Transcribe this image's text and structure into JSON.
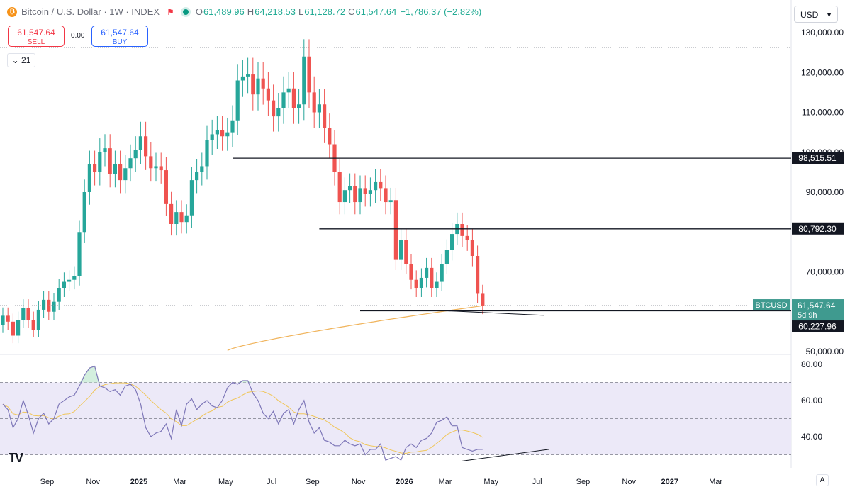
{
  "header": {
    "symbol": "Bitcoin / U.S. Dollar · 1W · INDEX",
    "coin_icon": "bitcoin-icon",
    "ohlc": [
      {
        "k": "O",
        "v": "61,489.96"
      },
      {
        "k": "H",
        "v": "64,218.53"
      },
      {
        "k": "L",
        "v": "61,128.72"
      },
      {
        "k": "C",
        "v": "61,547.64"
      },
      {
        "k": "",
        "v": "−1,786.37 (−2.82%)"
      }
    ]
  },
  "trade": {
    "sell_price": "61,547.64",
    "sell_label": "SELL",
    "buy_price": "61,547.64",
    "buy_label": "BUY",
    "spread": "0.00"
  },
  "indicators_toggle": "21",
  "currency": "USD",
  "auto_label": "A",
  "logo": "TV",
  "colors": {
    "up": "#26a69a",
    "down": "#ef5350",
    "ma": "#f0b35a",
    "rsi": "#7e77b8",
    "rsi_ma": "#f0c65a",
    "rsi_band": "#ece9f8"
  },
  "chart_data": {
    "type": "candlestick",
    "price_axis": {
      "min": 50000,
      "max": 130000,
      "ticks": [
        {
          "v": 130000,
          "label": "130,000.00"
        },
        {
          "v": 120000,
          "label": "120,000.00"
        },
        {
          "v": 110000,
          "label": "110,000.00"
        },
        {
          "v": 100000,
          "label": "100,000.00"
        },
        {
          "v": 90000,
          "label": "90,000.00"
        },
        {
          "v": 70000,
          "label": "70,000.00"
        },
        {
          "v": 50000,
          "label": "50,000.00"
        }
      ]
    },
    "x_axis": {
      "labels": [
        {
          "label": "Sep",
          "bar": 2,
          "bold": false
        },
        {
          "label": "Nov",
          "bar": 11,
          "bold": false
        },
        {
          "label": "2025",
          "bar": 20,
          "bold": true
        },
        {
          "label": "Mar",
          "bar": 28,
          "bold": false
        },
        {
          "label": "May",
          "bar": 37,
          "bold": false
        },
        {
          "label": "Jul",
          "bar": 46,
          "bold": false
        },
        {
          "label": "Sep",
          "bar": 54,
          "bold": false
        },
        {
          "label": "Nov",
          "bar": 63,
          "bold": false
        },
        {
          "label": "2026",
          "bar": 72,
          "bold": true
        },
        {
          "label": "Mar",
          "bar": 80,
          "bold": false
        },
        {
          "label": "May",
          "bar": 89,
          "bold": false
        },
        {
          "label": "Jul",
          "bar": 98,
          "bold": false
        },
        {
          "label": "Sep",
          "bar": 107,
          "bold": false
        },
        {
          "label": "Nov",
          "bar": 116,
          "bold": false
        },
        {
          "label": "2027",
          "bar": 124,
          "bold": true
        },
        {
          "label": "Mar",
          "bar": 133,
          "bold": false
        }
      ]
    },
    "closes": [
      59000,
      57500,
      54000,
      58000,
      61000,
      58000,
      55500,
      60500,
      63000,
      60000,
      62500,
      66000,
      67500,
      68000,
      69000,
      80000,
      90000,
      97000,
      95000,
      100000,
      101000,
      94500,
      97000,
      93000,
      96000,
      98500,
      100500,
      104000,
      99000,
      96000,
      96500,
      95500,
      87000,
      82000,
      85000,
      82500,
      84000,
      93000,
      95000,
      96500,
      103000,
      104500,
      105500,
      104000,
      105000,
      108000,
      118000,
      119000,
      119500,
      114500,
      118500,
      116000,
      113000,
      109000,
      111000,
      115000,
      116000,
      111000,
      112000,
      124000,
      115000,
      110000,
      112000,
      106000,
      102000,
      95000,
      87500,
      90500,
      91500,
      87500,
      91000,
      89500,
      90500,
      92500,
      91000,
      87500,
      88000,
      73000,
      78000,
      72000,
      68000,
      66000,
      68500,
      71000,
      66000,
      67500,
      72000,
      75500,
      79500,
      82000,
      79000,
      78000,
      74000,
      64500,
      61548
    ],
    "ma": {
      "start_bar": 44,
      "start_val": 50300,
      "end_bar": 94,
      "end_val": 61500
    },
    "levels": [
      {
        "value": 98515.51,
        "label": "98,515.51",
        "from_bar": 45
      },
      {
        "value": 80792.3,
        "label": "80,792.30",
        "from_bar": 62
      },
      {
        "value": 60227.96,
        "label": "60,227.96",
        "from_bar": 70
      }
    ],
    "last_price": {
      "value": 61547.64,
      "label": "61,547.64",
      "symbol": "BTCUSD",
      "countdown": "5d 9h"
    },
    "rsi": {
      "ticks": [
        {
          "v": 80,
          "label": "80.00"
        },
        {
          "v": 60,
          "label": "60.00"
        },
        {
          "v": 40,
          "label": "40.00"
        }
      ],
      "bands": [
        70,
        50,
        30
      ],
      "values": [
        58,
        55,
        45,
        50,
        60,
        52,
        42,
        50,
        53,
        47,
        50,
        58,
        60,
        62,
        63,
        68,
        74,
        78,
        79,
        68,
        67,
        65,
        66,
        63,
        68,
        69,
        66,
        58,
        45,
        40,
        42,
        43,
        47,
        39,
        55,
        46,
        58,
        61,
        55,
        58,
        60,
        57,
        56,
        60,
        67,
        70,
        69,
        71,
        71,
        64,
        60,
        53,
        50,
        54,
        47,
        53,
        55,
        47,
        55,
        60,
        48,
        42,
        45,
        38,
        37,
        35,
        35,
        38,
        36,
        35,
        36,
        30,
        33,
        33,
        36,
        27,
        28,
        29,
        27,
        34,
        36,
        34,
        38,
        39,
        42,
        48,
        49,
        51,
        46,
        46,
        34,
        33,
        32,
        33,
        33
      ]
    }
  }
}
